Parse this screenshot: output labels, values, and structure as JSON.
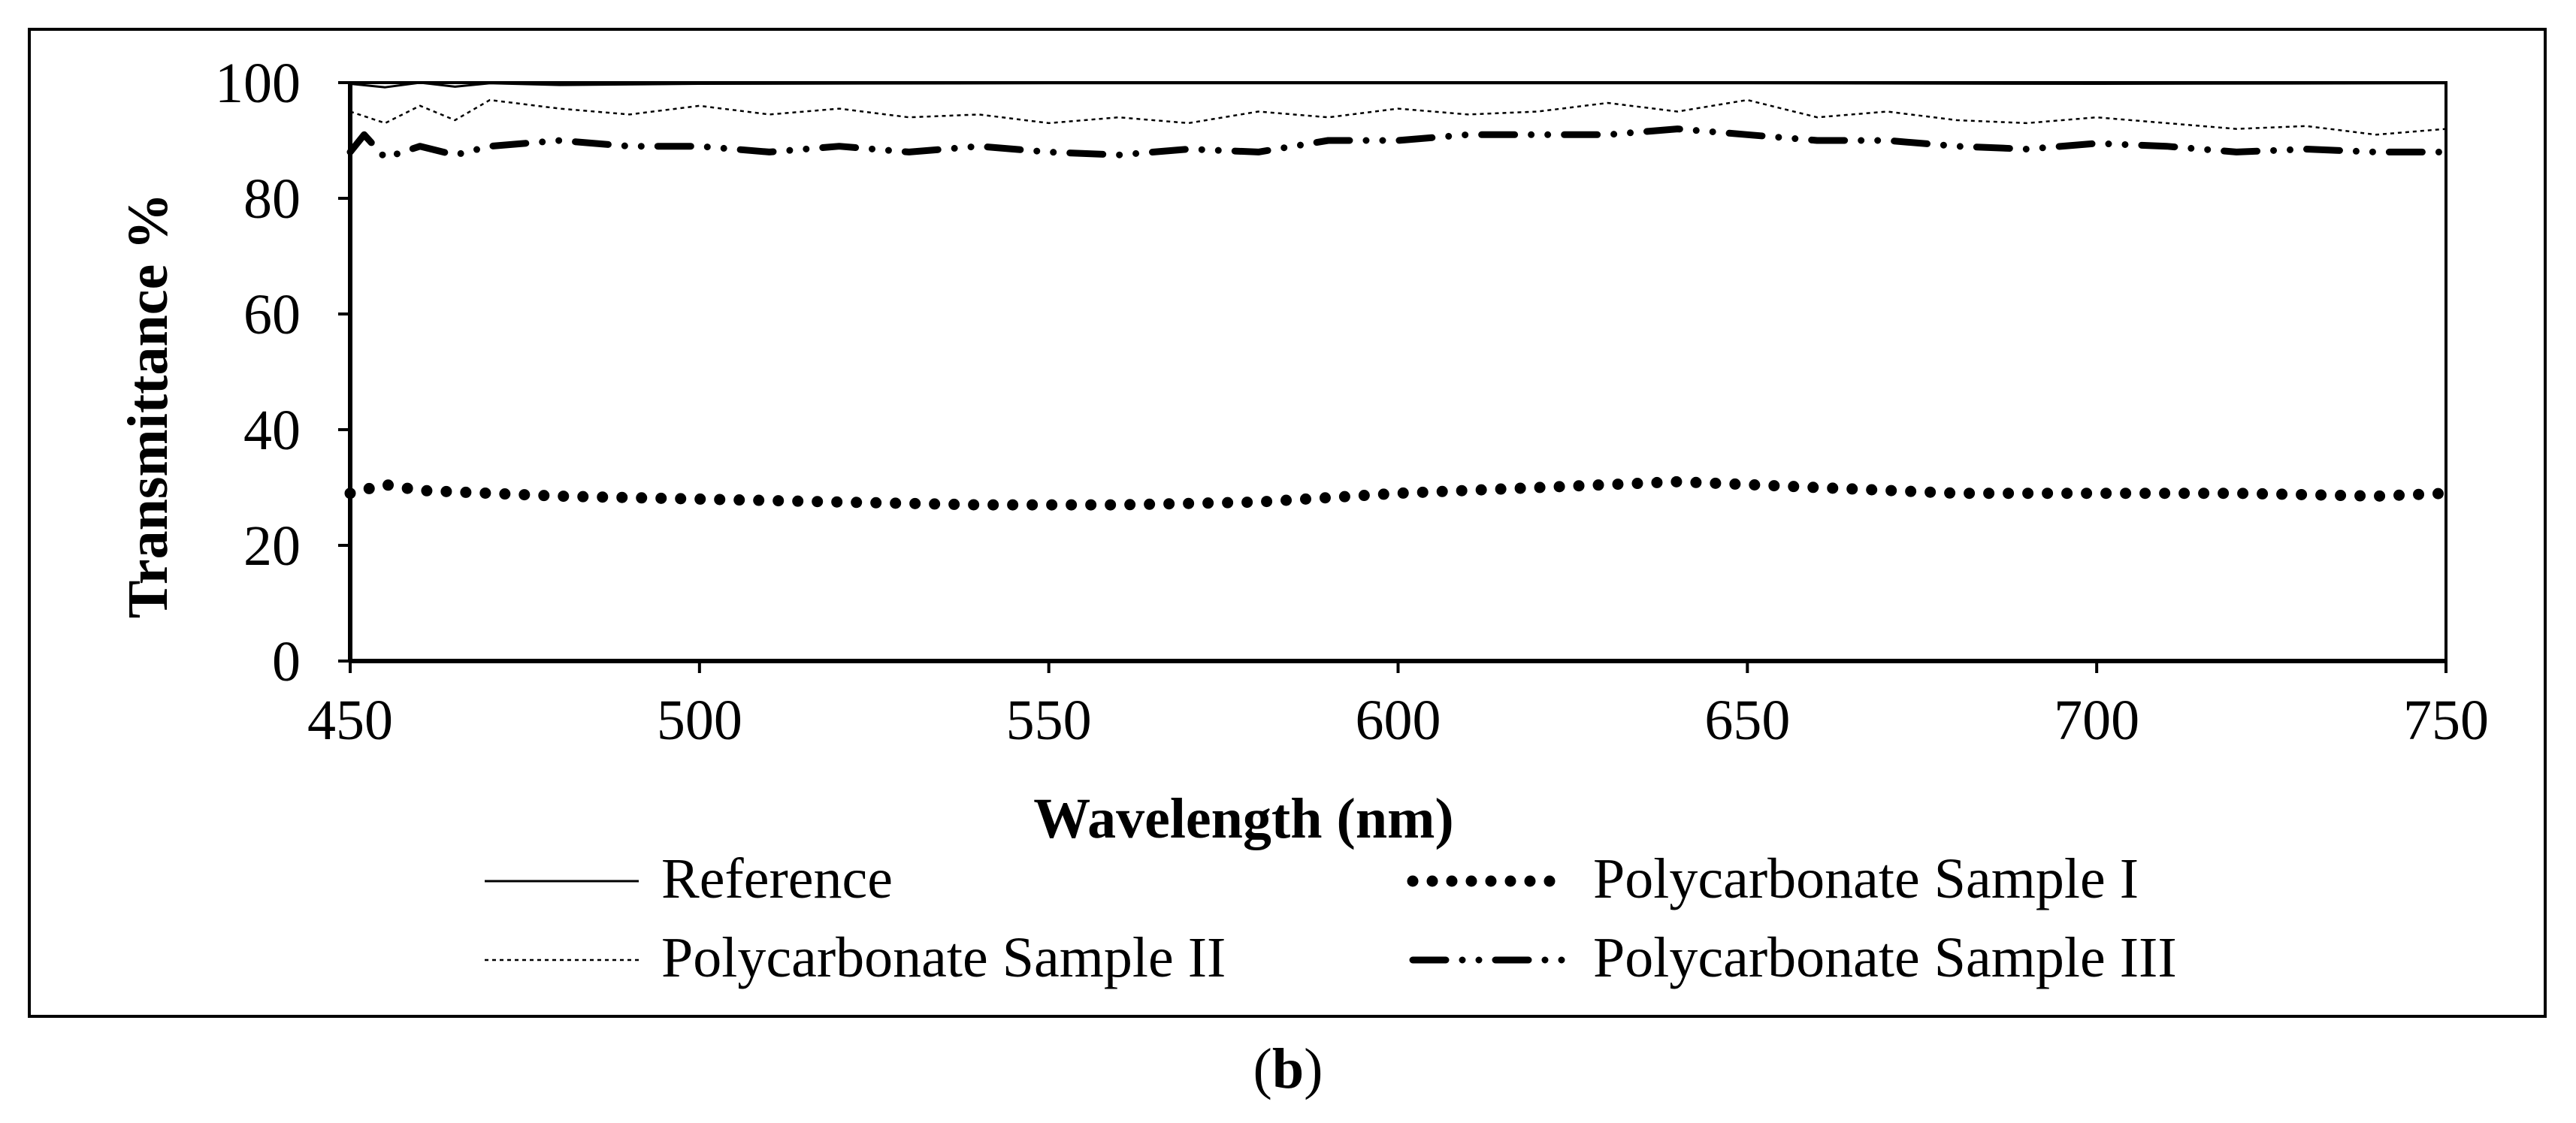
{
  "panel": {
    "paren_open": "(",
    "letter": "b",
    "paren_close": ")"
  },
  "chart_data": {
    "type": "line",
    "title": "",
    "xlabel": "Wavelength (nm)",
    "ylabel": "Transmittance %",
    "xlim": [
      450,
      750
    ],
    "ylim": [
      0,
      100
    ],
    "x_ticks": [
      450,
      500,
      550,
      600,
      650,
      700,
      750
    ],
    "y_ticks": [
      0,
      20,
      40,
      60,
      80,
      100
    ],
    "grid": false,
    "legend_position": "bottom",
    "series": [
      {
        "name": "Reference",
        "style": "solid-thin",
        "color": "#000000",
        "x": [
          450,
          455,
          460,
          465,
          470,
          480,
          500,
          550,
          600,
          650,
          700,
          750
        ],
        "y": [
          99.8,
          99.2,
          100,
          99.3,
          99.9,
          99.6,
          99.8,
          99.9,
          99.9,
          99.9,
          99.8,
          99.9
        ]
      },
      {
        "name": "Polycarbonate Sample I",
        "style": "round-dots",
        "color": "#000000",
        "x": [
          450,
          455,
          460,
          470,
          480,
          500,
          520,
          540,
          560,
          580,
          600,
          620,
          640,
          650,
          660,
          680,
          700,
          720,
          740,
          750
        ],
        "y": [
          29,
          30.5,
          29.5,
          29,
          28.5,
          28,
          27.5,
          27,
          27,
          27.5,
          29,
          30,
          31,
          30.5,
          30,
          29,
          29,
          29,
          28.5,
          29
        ]
      },
      {
        "name": "Polycarbonate Sample II",
        "style": "dotted-thin",
        "color": "#000000",
        "x": [
          450,
          455,
          460,
          465,
          470,
          480,
          490,
          500,
          510,
          520,
          530,
          540,
          550,
          560,
          570,
          580,
          590,
          600,
          610,
          620,
          630,
          640,
          650,
          660,
          670,
          680,
          690,
          700,
          710,
          720,
          730,
          740,
          750
        ],
        "y": [
          95,
          93,
          96,
          93.5,
          97,
          95.5,
          94.5,
          96,
          94.5,
          95.5,
          94,
          94.5,
          93,
          94,
          93,
          95,
          94,
          95.5,
          94.5,
          95,
          96.5,
          95,
          97,
          94,
          95,
          93.5,
          93,
          94,
          93,
          92,
          92.5,
          91,
          92
        ]
      },
      {
        "name": "Polycarbonate Sample III",
        "style": "dash-dot-dot",
        "color": "#000000",
        "x": [
          450,
          452,
          455,
          460,
          465,
          470,
          480,
          490,
          500,
          510,
          520,
          530,
          540,
          550,
          560,
          570,
          580,
          590,
          600,
          610,
          620,
          630,
          640,
          650,
          660,
          670,
          680,
          690,
          700,
          710,
          720,
          730,
          740,
          750
        ],
        "y": [
          88,
          91,
          87,
          89,
          87.5,
          89,
          90,
          89,
          89,
          88,
          89,
          88,
          89,
          88,
          87.5,
          88.5,
          88,
          90,
          90,
          91,
          91,
          91,
          92,
          91,
          90,
          90,
          89,
          88.5,
          89.5,
          89,
          88,
          88.5,
          88,
          88
        ]
      }
    ]
  }
}
